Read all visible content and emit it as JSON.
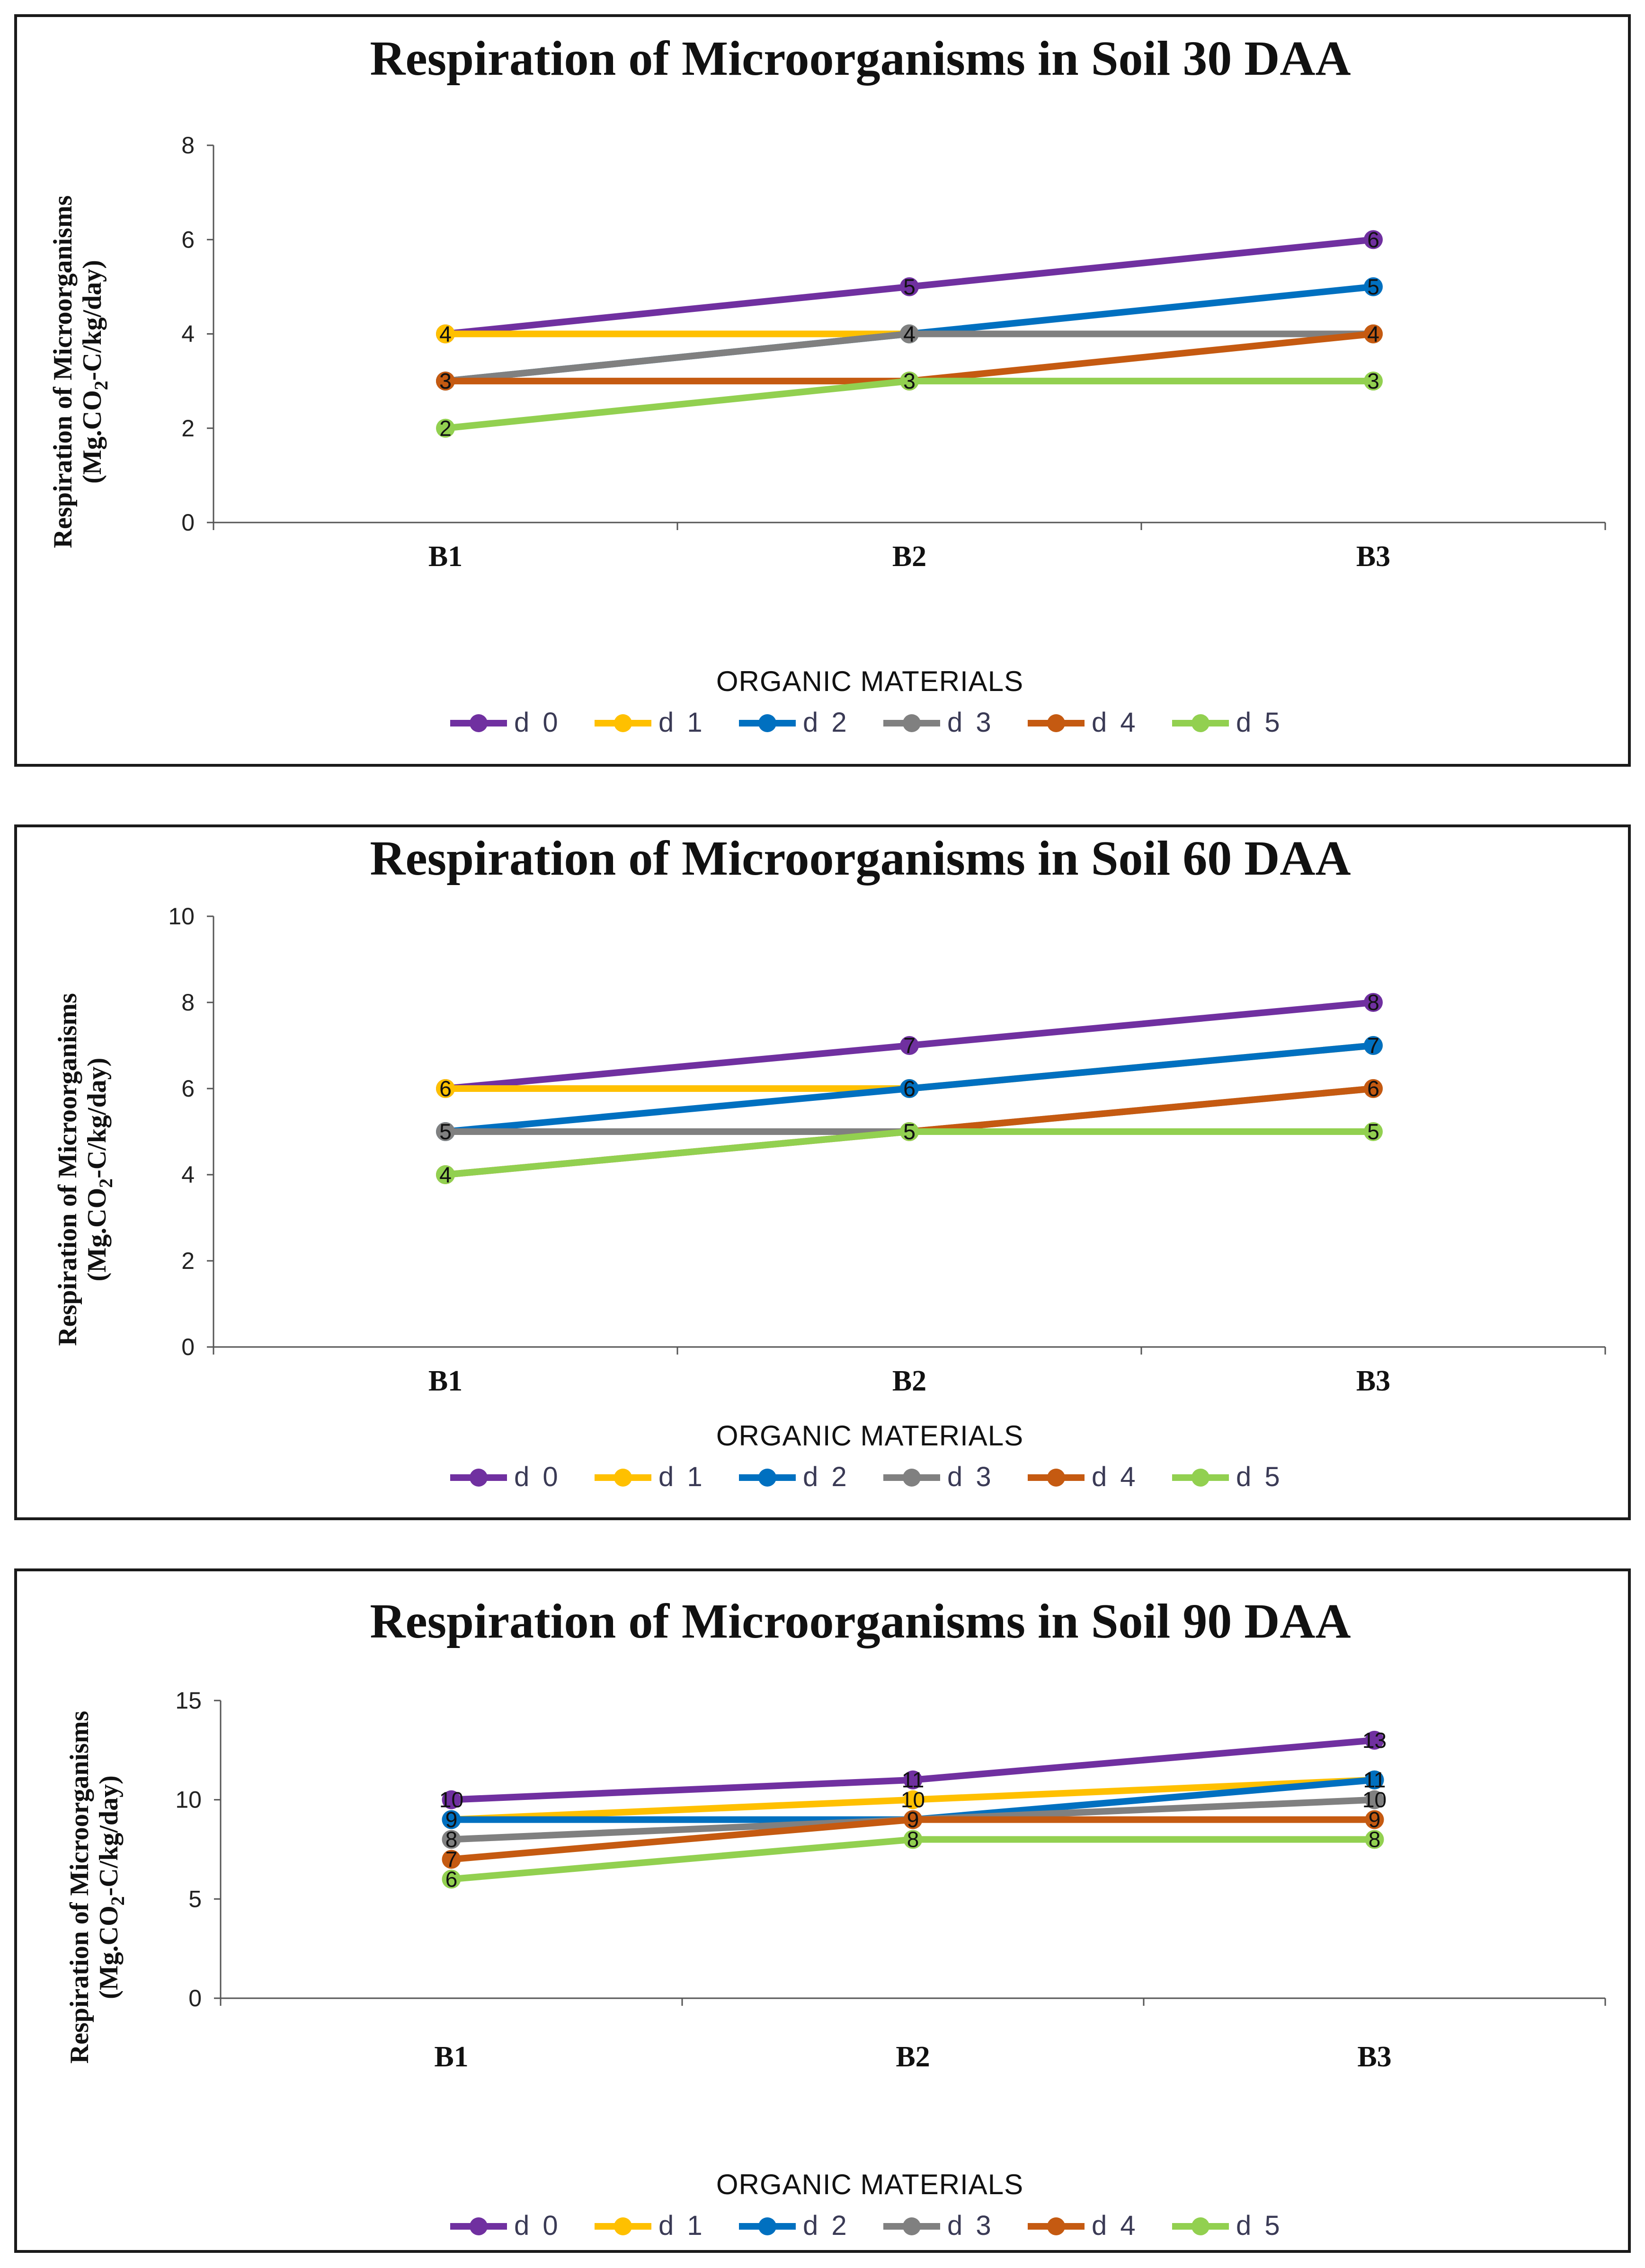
{
  "chart_data": [
    {
      "type": "line",
      "title": "Respiration of Microorganisms in Soil 30 DAA",
      "ylabel_line1": "Respiration of Microorganisms",
      "ylabel_line2": "(Mg.CO",
      "ylabel_sub": "2",
      "ylabel_line2_rest": "-C/kg/day)",
      "xlabel": "ORGANIC MATERIALS",
      "categories": [
        "B1",
        "B2",
        "B3"
      ],
      "ylim": [
        0,
        8
      ],
      "yticks": [
        0,
        2,
        4,
        6,
        8
      ],
      "legend_position": "bottom",
      "series": [
        {
          "name": "d 0",
          "values": [
            4,
            5,
            6
          ],
          "color": "#7030A0"
        },
        {
          "name": "d 1",
          "values": [
            4,
            4,
            4
          ],
          "color": "#FFC000"
        },
        {
          "name": "d 2",
          "values": [
            3,
            4,
            5
          ],
          "color": "#0070C0"
        },
        {
          "name": "d 3",
          "values": [
            3,
            4,
            4
          ],
          "color": "#808080"
        },
        {
          "name": "d 4",
          "values": [
            3,
            3,
            4
          ],
          "color": "#C55A11"
        },
        {
          "name": "d 5",
          "values": [
            2,
            3,
            3
          ],
          "color": "#92D050"
        }
      ]
    },
    {
      "type": "line",
      "title": "Respiration of Microorganisms in Soil 60 DAA",
      "ylabel_line1": "Respiration of Microorganisms",
      "ylabel_line2": "(Mg.CO",
      "ylabel_sub": "2",
      "ylabel_line2_rest": "-C/kg/day)",
      "xlabel": "ORGANIC MATERIALS",
      "categories": [
        "B1",
        "B2",
        "B3"
      ],
      "ylim": [
        0,
        10
      ],
      "yticks": [
        0,
        2,
        4,
        6,
        8,
        10
      ],
      "legend_position": "bottom",
      "series": [
        {
          "name": "d 0",
          "values": [
            6,
            7,
            8
          ],
          "color": "#7030A0"
        },
        {
          "name": "d 1",
          "values": [
            6,
            6,
            7
          ],
          "color": "#FFC000"
        },
        {
          "name": "d 2",
          "values": [
            5,
            6,
            7
          ],
          "color": "#0070C0"
        },
        {
          "name": "d 3",
          "values": [
            5,
            5,
            6
          ],
          "color": "#808080"
        },
        {
          "name": "d 4",
          "values": [
            4,
            5,
            6
          ],
          "color": "#C55A11"
        },
        {
          "name": "d 5",
          "values": [
            4,
            5,
            5
          ],
          "color": "#92D050"
        }
      ]
    },
    {
      "type": "line",
      "title": "Respiration of Microorganisms in Soil 90 DAA",
      "ylabel_line1": "Respiration of Microorganisms",
      "ylabel_line2": "(Mg.CO",
      "ylabel_sub": "2",
      "ylabel_line2_rest": "-C/kg/day)",
      "xlabel": "ORGANIC MATERIALS",
      "categories": [
        "B1",
        "B2",
        "B3"
      ],
      "ylim": [
        0,
        15
      ],
      "yticks": [
        0,
        5,
        10,
        15
      ],
      "legend_position": "bottom",
      "series": [
        {
          "name": "d 0",
          "values": [
            10,
            11,
            13
          ],
          "color": "#7030A0"
        },
        {
          "name": "d 1",
          "values": [
            9,
            10,
            11
          ],
          "color": "#FFC000"
        },
        {
          "name": "d 2",
          "values": [
            9,
            9,
            11
          ],
          "color": "#0070C0"
        },
        {
          "name": "d 3",
          "values": [
            8,
            9,
            10
          ],
          "color": "#808080"
        },
        {
          "name": "d 4",
          "values": [
            7,
            9,
            9
          ],
          "color": "#C55A11"
        },
        {
          "name": "d 5",
          "values": [
            6,
            8,
            8
          ],
          "color": "#92D050"
        }
      ]
    }
  ]
}
